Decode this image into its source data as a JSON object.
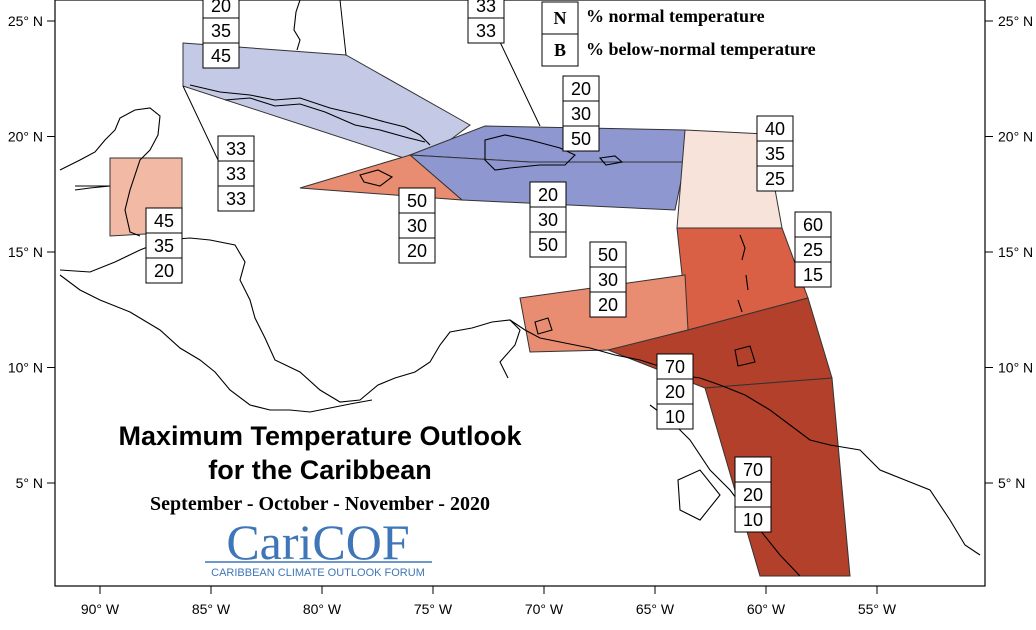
{
  "map": {
    "title_line1": "Maximum Temperature Outlook",
    "title_line2": "for the Caribbean",
    "period": "September - October - November - 2020",
    "logo": {
      "name": "CariCOF",
      "tagline": "CARIBBEAN CLIMATE OUTLOOK FORUM"
    },
    "legend": [
      {
        "letter": "N",
        "label": "% normal temperature"
      },
      {
        "letter": "B",
        "label": "% below-normal temperature"
      }
    ],
    "lon_ticks": [
      "90° W",
      "85° W",
      "80° W",
      "75° W",
      "70° W",
      "65° W",
      "60° W",
      "55° W"
    ],
    "lat_ticks": [
      "25° N",
      "20° N",
      "15° N",
      "10° N",
      "5° N"
    ],
    "colors": {
      "near_normal_blue_light": "#c4cae6",
      "near_normal_blue": "#8e97cf",
      "above_pale": "#f8e3da",
      "above_light": "#f2b9a5",
      "above_medium": "#e88c72",
      "above_strong": "#d95f45",
      "above_strongest": "#b2402b"
    }
  },
  "regions": [
    {
      "name": "bahamas-cuba",
      "probs": [
        "20",
        "35",
        "45"
      ]
    },
    {
      "name": "turks-caicos",
      "probs": [
        "33",
        "33"
      ]
    },
    {
      "name": "hispaniola-north",
      "probs": [
        "20",
        "30",
        "50"
      ]
    },
    {
      "name": "hispaniola-south",
      "probs": [
        "20",
        "30",
        "50"
      ]
    },
    {
      "name": "cayman",
      "probs": [
        "33",
        "33",
        "33"
      ]
    },
    {
      "name": "jamaica",
      "probs": [
        "50",
        "30",
        "20"
      ]
    },
    {
      "name": "belize",
      "probs": [
        "45",
        "35",
        "20"
      ]
    },
    {
      "name": "leeward-islands",
      "probs": [
        "40",
        "35",
        "25"
      ]
    },
    {
      "name": "windward-islands",
      "probs": [
        "60",
        "25",
        "15"
      ]
    },
    {
      "name": "abc-islands",
      "probs": [
        "50",
        "30",
        "20"
      ]
    },
    {
      "name": "trinidad",
      "probs": [
        "70",
        "20",
        "10"
      ]
    },
    {
      "name": "guianas",
      "probs": [
        "70",
        "20",
        "10"
      ]
    }
  ]
}
